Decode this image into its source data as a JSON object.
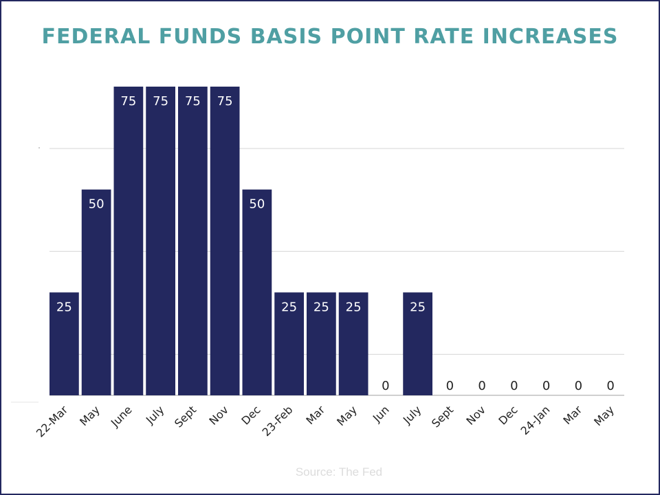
{
  "colors": {
    "bar": "#23285f",
    "title": "#4f9fa3",
    "grid": "#d4d4d4",
    "label_on_bar": "#ffffff",
    "label_off_bar": "#222222",
    "source": "#dcdcdc"
  },
  "chart_data": {
    "type": "bar",
    "title": "FEDERAL FUNDS BASIS POINT RATE INCREASES",
    "xlabel": "",
    "ylabel": "",
    "categories": [
      "22-Mar",
      "May",
      "June",
      "July",
      "Sept",
      "Nov",
      "Dec",
      "23-Feb",
      "Mar",
      "May",
      "Jun",
      "July",
      "Sept",
      "Nov",
      "Dec",
      "24-Jan",
      "Mar",
      "May"
    ],
    "values": [
      25,
      50,
      75,
      75,
      75,
      75,
      50,
      25,
      25,
      25,
      0,
      25,
      0,
      0,
      0,
      0,
      0,
      0
    ],
    "ylim": [
      0,
      75
    ],
    "grid": true,
    "legend": "none",
    "data_labels": true
  },
  "source": "Source: The Fed"
}
